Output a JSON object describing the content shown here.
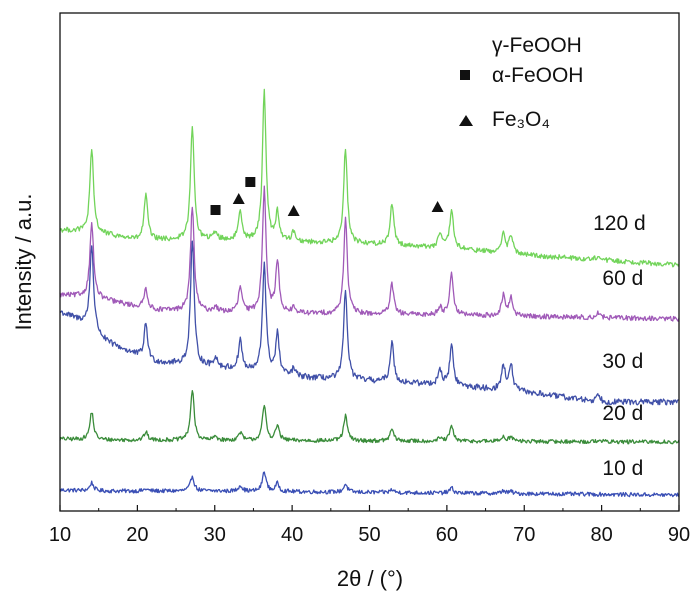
{
  "chart_data": {
    "type": "line",
    "xlabel": "2θ / (°)",
    "ylabel": "Intensity / a.u.",
    "xlim": [
      10,
      90
    ],
    "xticks": [
      "10",
      "20",
      "30",
      "40",
      "50",
      "60",
      "70",
      "80",
      "90"
    ],
    "y_ticks_shown": false,
    "grid": false,
    "legend": {
      "position": "top-right",
      "entries": [
        {
          "symbol": "none",
          "label": "γ-FeOOH"
        },
        {
          "symbol": "square",
          "label": "α-FeOOH"
        },
        {
          "symbol": "triangle",
          "label": "Fe₃O₄"
        }
      ]
    },
    "peaks_2theta": [
      14.1,
      21.1,
      27.1,
      30.1,
      33.3,
      36.4,
      38.1,
      40.2,
      46.9,
      52.9,
      59.1,
      60.6,
      67.3,
      68.3,
      79.6
    ],
    "series": [
      {
        "name": "10 d",
        "color": "#3a4fb5",
        "offset": 0.0,
        "baseline": [
          [
            10,
            5
          ],
          [
            16,
            4
          ],
          [
            30,
            4
          ],
          [
            90,
            0
          ]
        ],
        "noise": 2,
        "peak_heights": [
          8,
          2,
          15,
          0,
          6,
          20,
          8,
          0,
          8,
          3,
          0,
          5,
          3,
          2,
          0
        ]
      },
      {
        "name": "20 d",
        "color": "#3a8c3a",
        "offset": 52.0,
        "baseline": [
          [
            10,
            4
          ],
          [
            16,
            3
          ],
          [
            90,
            1
          ]
        ],
        "noise": 2,
        "peak_heights": [
          28,
          8,
          50,
          4,
          8,
          35,
          15,
          0,
          25,
          12,
          3,
          15,
          5,
          5,
          2
        ]
      },
      {
        "name": "30 d",
        "color": "#4050a8",
        "offset": 88.0,
        "baseline": [
          [
            10,
            95
          ],
          [
            13,
            85
          ],
          [
            16,
            65
          ],
          [
            22,
            45
          ],
          [
            30,
            40
          ],
          [
            40,
            30
          ],
          [
            60,
            22
          ],
          [
            70,
            15
          ],
          [
            80,
            5
          ],
          [
            90,
            5
          ]
        ],
        "noise": 3,
        "peak_heights": [
          85,
          35,
          125,
          10,
          30,
          110,
          40,
          8,
          90,
          40,
          15,
          40,
          25,
          25,
          8
        ]
      },
      {
        "name": "60 d",
        "color": "#a05ab8",
        "offset": 170.0,
        "baseline": [
          [
            10,
            30
          ],
          [
            14,
            28
          ],
          [
            22,
            15
          ],
          [
            35,
            12
          ],
          [
            60,
            10
          ],
          [
            90,
            6
          ]
        ],
        "noise": 2.5,
        "peak_heights": [
          75,
          20,
          105,
          5,
          25,
          125,
          50,
          5,
          95,
          30,
          8,
          42,
          20,
          18,
          5
        ]
      },
      {
        "name": "120 d",
        "color": "#72d45a",
        "offset": 225.0,
        "baseline": [
          [
            10,
            40
          ],
          [
            14,
            38
          ],
          [
            20,
            30
          ],
          [
            30,
            30
          ],
          [
            40,
            28
          ],
          [
            50,
            26
          ],
          [
            60,
            22
          ],
          [
            70,
            15
          ],
          [
            80,
            10
          ],
          [
            90,
            5
          ]
        ],
        "noise": 2.5,
        "peak_heights": [
          82,
          45,
          115,
          8,
          30,
          150,
          28,
          10,
          95,
          42,
          14,
          38,
          20,
          18,
          5
        ]
      }
    ],
    "markers": [
      {
        "type": "square",
        "x": 30.1,
        "y": 285.0
      },
      {
        "type": "square",
        "x": 34.6,
        "y": 313.0
      },
      {
        "type": "triangle",
        "x": 33.1,
        "y": 296.0
      },
      {
        "type": "triangle",
        "x": 40.2,
        "y": 284.0
      },
      {
        "type": "triangle",
        "x": 58.8,
        "y": 288.0
      }
    ],
    "sample_labels": [
      {
        "text": "10 d",
        "x": 80.1,
        "y": 20.0
      },
      {
        "text": "20 d",
        "x": 80.1,
        "y": 75.0
      },
      {
        "text": "30 d",
        "x": 80.1,
        "y": 127.0
      },
      {
        "text": "60 d",
        "x": 80.1,
        "y": 210.0
      },
      {
        "text": "120 d",
        "x": 78.9,
        "y": 265.0
      }
    ]
  }
}
